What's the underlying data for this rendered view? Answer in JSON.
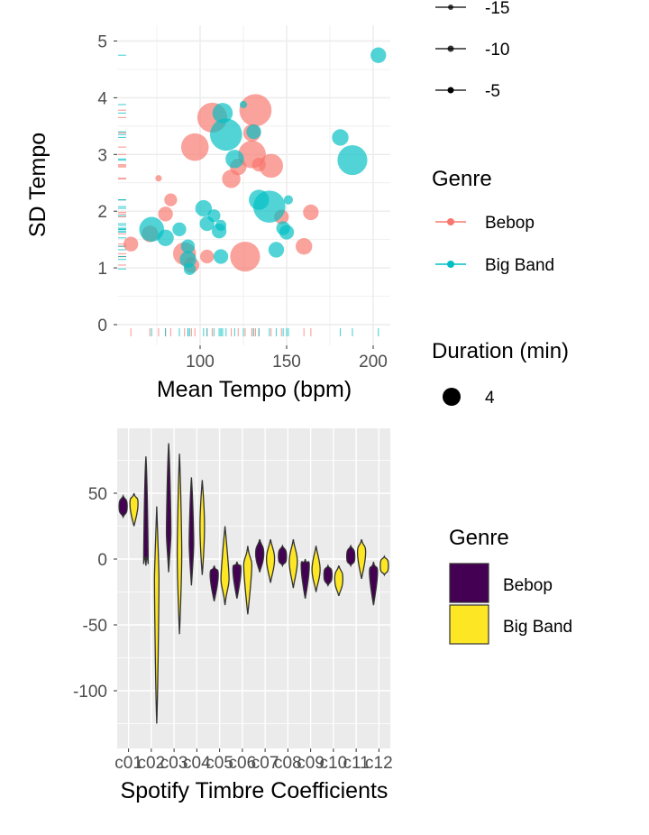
{
  "chart_data": [
    {
      "type": "scatter",
      "xlabel": "Mean Tempo (bpm)",
      "ylabel": "SD Tempo",
      "x_ticks": [
        "100",
        "150",
        "200"
      ],
      "y_ticks": [
        "0",
        "1",
        "2",
        "3",
        "4",
        "5"
      ],
      "xlim": [
        52,
        212
      ],
      "ylim": [
        -0.2,
        5.25
      ],
      "grid": true,
      "series": [
        {
          "name": "Bebop",
          "color": "#F8766D",
          "points": [
            {
              "x": 60,
              "y": 1.42,
              "size": 3.2
            },
            {
              "x": 71,
              "y": 1.6,
              "size": 3.6
            },
            {
              "x": 76,
              "y": 2.58,
              "size": 1.4
            },
            {
              "x": 80,
              "y": 1.95,
              "size": 3.2
            },
            {
              "x": 83,
              "y": 2.2,
              "size": 2.8
            },
            {
              "x": 91,
              "y": 1.25,
              "size": 5.0
            },
            {
              "x": 95,
              "y": 1.05,
              "size": 3.4
            },
            {
              "x": 97,
              "y": 3.13,
              "size": 6.0
            },
            {
              "x": 104,
              "y": 1.2,
              "size": 3.0
            },
            {
              "x": 107,
              "y": 3.65,
              "size": 6.5
            },
            {
              "x": 118,
              "y": 2.57,
              "size": 4.0
            },
            {
              "x": 122,
              "y": 2.78,
              "size": 3.6
            },
            {
              "x": 126,
              "y": 1.2,
              "size": 6.5
            },
            {
              "x": 130,
              "y": 3.0,
              "size": 6.0
            },
            {
              "x": 132,
              "y": 3.78,
              "size": 7.0
            },
            {
              "x": 130,
              "y": 3.38,
              "size": 3.8
            },
            {
              "x": 147,
              "y": 1.9,
              "size": 3.2
            },
            {
              "x": 160,
              "y": 1.38,
              "size": 3.6
            },
            {
              "x": 164,
              "y": 1.98,
              "size": 3.4
            },
            {
              "x": 134,
              "y": 2.82,
              "size": 3.0
            },
            {
              "x": 141,
              "y": 2.8,
              "size": 5.2
            }
          ]
        },
        {
          "name": "Big Band",
          "color": "#00BFC4",
          "points": [
            {
              "x": 72,
              "y": 1.68,
              "size": 5.4
            },
            {
              "x": 80,
              "y": 1.53,
              "size": 3.6
            },
            {
              "x": 88,
              "y": 1.68,
              "size": 3.0
            },
            {
              "x": 93,
              "y": 1.38,
              "size": 3.0
            },
            {
              "x": 93,
              "y": 1.15,
              "size": 3.6
            },
            {
              "x": 94,
              "y": 0.98,
              "size": 2.6
            },
            {
              "x": 102,
              "y": 2.05,
              "size": 3.6
            },
            {
              "x": 104,
              "y": 1.78,
              "size": 3.2
            },
            {
              "x": 108,
              "y": 1.92,
              "size": 2.8
            },
            {
              "x": 111,
              "y": 1.65,
              "size": 3.2
            },
            {
              "x": 112,
              "y": 1.2,
              "size": 3.2
            },
            {
              "x": 112,
              "y": 1.75,
              "size": 2.4
            },
            {
              "x": 113,
              "y": 3.73,
              "size": 4.4
            },
            {
              "x": 115,
              "y": 3.35,
              "size": 7.0
            },
            {
              "x": 120,
              "y": 2.92,
              "size": 4.0
            },
            {
              "x": 125,
              "y": 3.88,
              "size": 1.6
            },
            {
              "x": 131,
              "y": 3.4,
              "size": 3.2
            },
            {
              "x": 134,
              "y": 2.2,
              "size": 4.4
            },
            {
              "x": 140,
              "y": 2.08,
              "size": 7.0
            },
            {
              "x": 144,
              "y": 1.32,
              "size": 3.4
            },
            {
              "x": 148,
              "y": 1.7,
              "size": 3.0
            },
            {
              "x": 150,
              "y": 1.63,
              "size": 3.2
            },
            {
              "x": 151,
              "y": 2.2,
              "size": 2.0
            },
            {
              "x": 181,
              "y": 3.3,
              "size": 3.6
            },
            {
              "x": 188,
              "y": 2.9,
              "size": 6.5
            },
            {
              "x": 203,
              "y": 4.75,
              "size": 3.4
            }
          ]
        }
      ]
    },
    {
      "type": "violin",
      "xlabel": "Spotify Timbre Coefficients",
      "ylabel": "",
      "categories": [
        "c01",
        "c02",
        "c03",
        "c04",
        "c05",
        "c06",
        "c07",
        "c08",
        "c09",
        "c10",
        "c11",
        "c12"
      ],
      "x_tick_text": [
        "c01",
        "c02",
        "c03",
        "c04",
        "c05",
        "c06",
        "c07",
        "c08",
        "c09",
        "c10",
        "c11",
        "c12"
      ],
      "y_ticks": [
        "50",
        "0",
        "-50",
        "-100"
      ],
      "ylim": [
        -135,
        95
      ],
      "grid": true,
      "series": [
        {
          "name": "Bebop",
          "color": "#440154",
          "ranges": [
            [
              32,
              48
            ],
            [
              -5,
              78
            ],
            [
              -10,
              88
            ],
            [
              -20,
              62
            ],
            [
              -32,
              -5
            ],
            [
              -30,
              -2
            ],
            [
              -10,
              15
            ],
            [
              -5,
              10
            ],
            [
              -30,
              0
            ],
            [
              -20,
              -5
            ],
            [
              -5,
              10
            ],
            [
              -35,
              -2
            ]
          ],
          "medians": [
            40,
            -2,
            20,
            12,
            -12,
            -8,
            4,
            2,
            -5,
            -12,
            2,
            -10
          ]
        },
        {
          "name": "Big Band",
          "color": "#FDE725",
          "ranges": [
            [
              25,
              50
            ],
            [
              -125,
              40
            ],
            [
              -57,
              80
            ],
            [
              -12,
              60
            ],
            [
              -35,
              25
            ],
            [
              -42,
              10
            ],
            [
              -18,
              15
            ],
            [
              -22,
              15
            ],
            [
              -25,
              10
            ],
            [
              -28,
              -5
            ],
            [
              -15,
              15
            ],
            [
              -12,
              2
            ]
          ],
          "medians": [
            42,
            -15,
            5,
            25,
            -15,
            -5,
            0,
            -2,
            -8,
            -15,
            5,
            -5
          ]
        }
      ]
    }
  ],
  "legends": {
    "size_legend_top": {
      "labels": [
        "-15",
        "-10",
        "-5"
      ]
    },
    "genre_scatter": {
      "title": "Genre",
      "items": [
        {
          "label": "Bebop",
          "color": "#F8766D"
        },
        {
          "label": "Big Band",
          "color": "#00BFC4"
        }
      ]
    },
    "duration": {
      "title": "Duration (min)",
      "items": [
        {
          "label": "4"
        }
      ]
    },
    "genre_violin": {
      "title": "Genre",
      "items": [
        {
          "label": "Bebop",
          "color": "#440154"
        },
        {
          "label": "Big Band",
          "color": "#FDE725"
        }
      ]
    }
  }
}
